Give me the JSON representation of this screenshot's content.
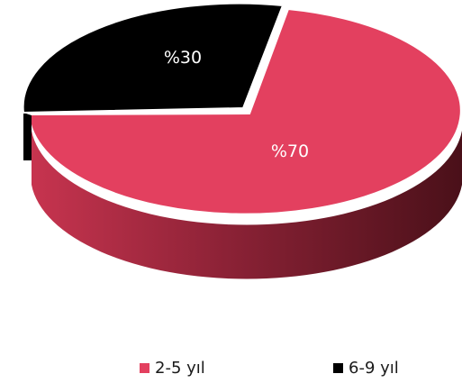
{
  "chart_data": {
    "type": "pie",
    "three_d": true,
    "title": "",
    "slices": [
      {
        "label": "2-5 yıl",
        "value": 70,
        "display": "%70",
        "color": "#e3405f",
        "label_color": "#ffffff"
      },
      {
        "label": "6-9 yıl",
        "value": 30,
        "display": "%30",
        "color": "#000000",
        "label_color": "#ffffff"
      }
    ],
    "legend": {
      "placement": "bottom"
    }
  }
}
